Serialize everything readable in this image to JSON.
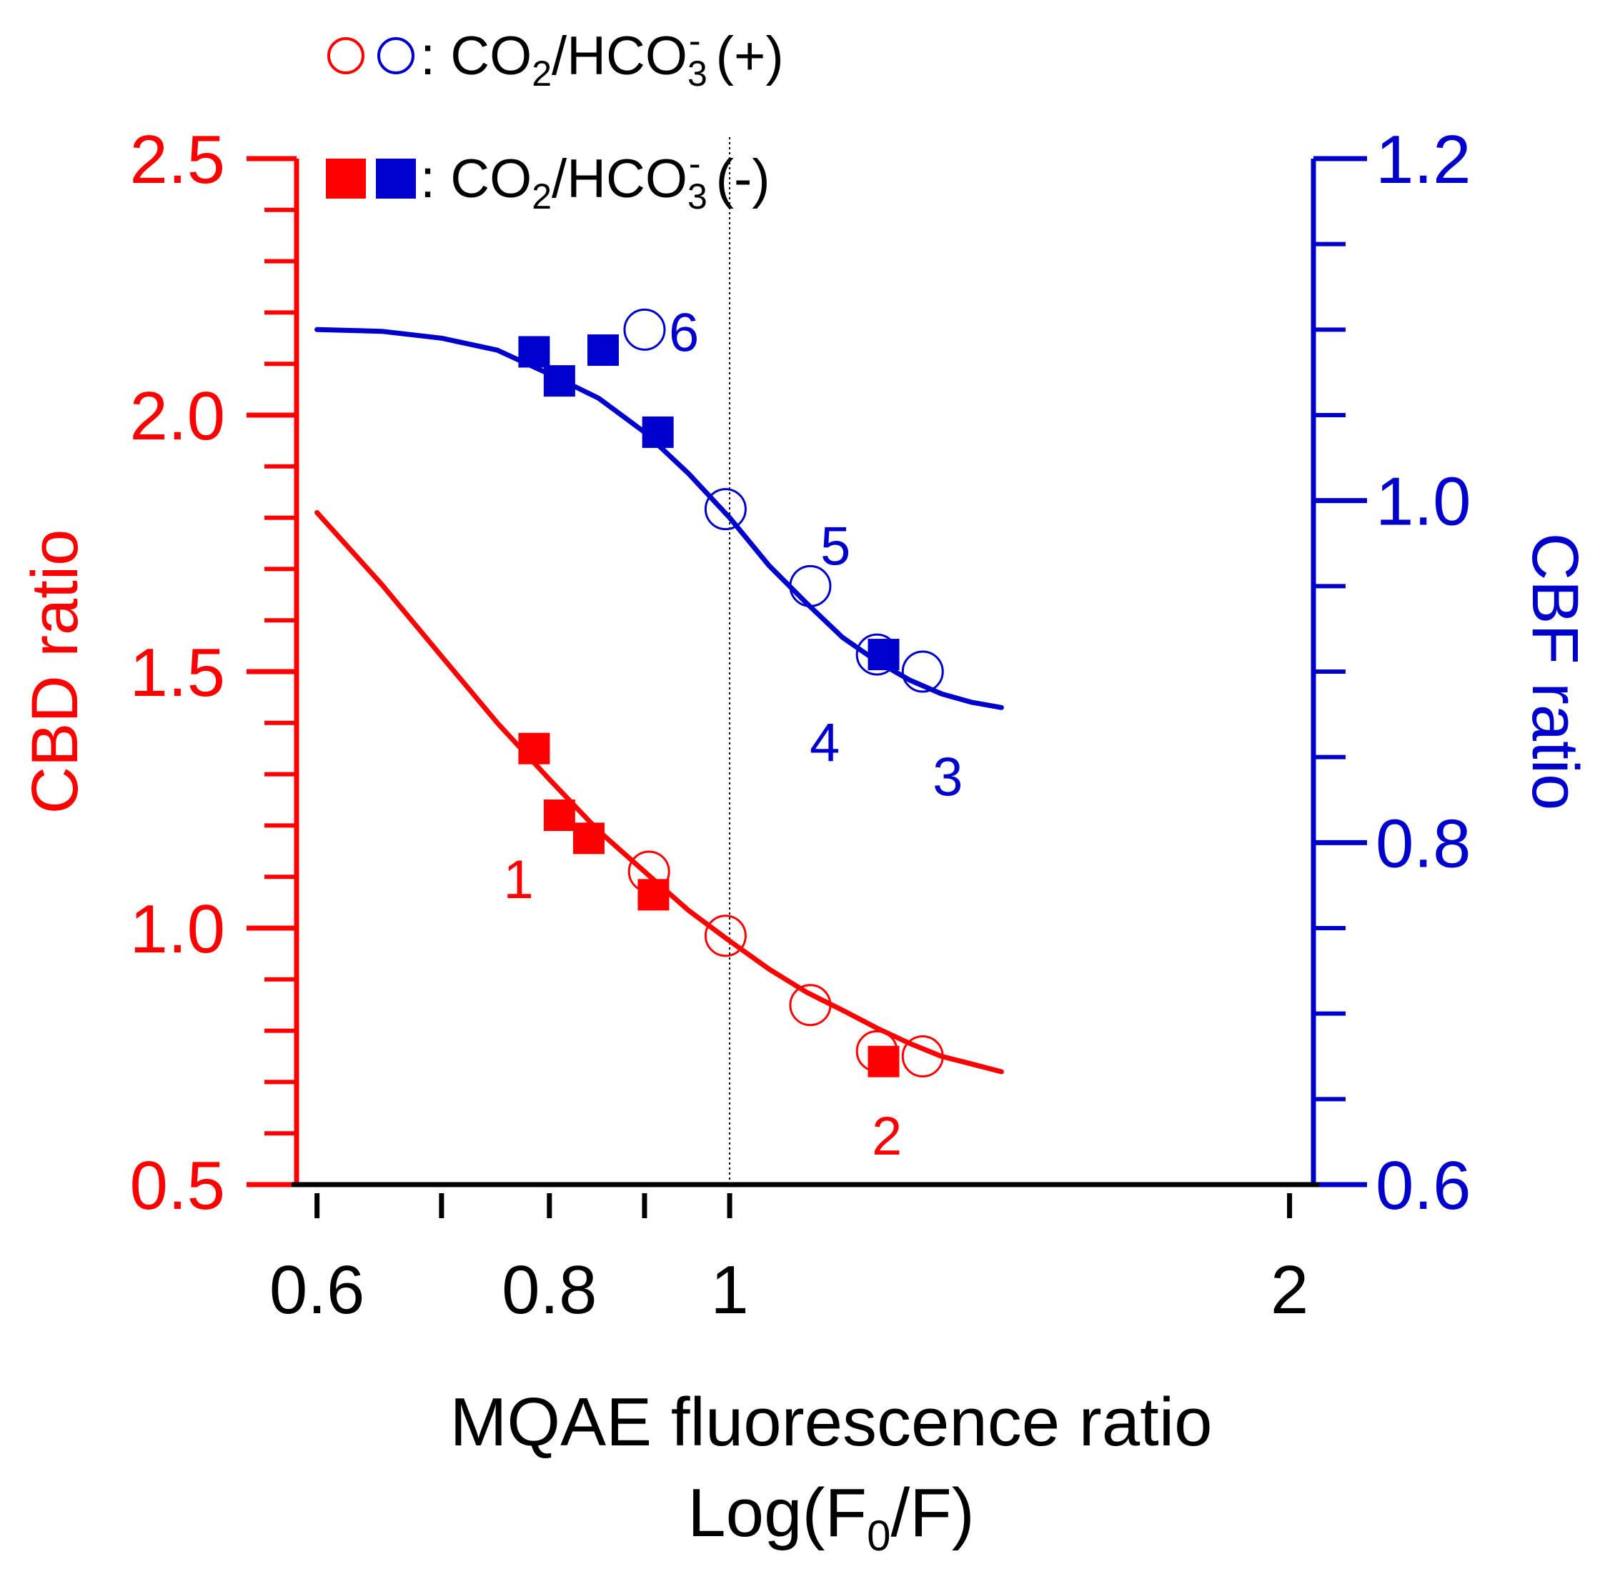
{
  "chart_data": {
    "type": "scatter",
    "title": "",
    "x_scale": "log",
    "xlabel": "MQAE fluorescence ratio",
    "xlabel_line2": {
      "prefix": "Log(F",
      "sub": "0",
      "suffix": "/F)"
    },
    "x_ticks": [
      0.6,
      0.7,
      0.8,
      0.9,
      1,
      2
    ],
    "x_tick_labels": [
      {
        "value": 0.6,
        "label": "0.6"
      },
      {
        "value": 0.8,
        "label": "0.8"
      },
      {
        "value": 1,
        "label": "1"
      },
      {
        "value": 2,
        "label": "2"
      }
    ],
    "xlim": [
      0.585,
      2.06
    ],
    "reference_line_x": 1.0,
    "y_left": {
      "label": "CBD ratio",
      "color": "#ff0000",
      "ylim": [
        0.5,
        2.5
      ],
      "major_ticks": [
        0.5,
        1.0,
        1.5,
        2.0,
        2.5
      ],
      "tick_labels": [
        "0.5",
        "1.0",
        "1.5",
        "2.0",
        "2.5"
      ],
      "minor_ticks": [
        0.6,
        0.7,
        0.8,
        0.9,
        1.1,
        1.2,
        1.3,
        1.4,
        1.6,
        1.7,
        1.8,
        1.9,
        2.1,
        2.2,
        2.3,
        2.4
      ]
    },
    "y_right": {
      "label": "CBF ratio",
      "color": "#0000cc",
      "ylim": [
        0.6,
        1.2
      ],
      "major_ticks": [
        0.6,
        0.8,
        1.0,
        1.2
      ],
      "tick_labels": [
        "0.6",
        "0.8",
        "1.0",
        "1.2"
      ],
      "minor_ticks": [
        0.65,
        0.7,
        0.75,
        0.85,
        0.9,
        0.95,
        1.05,
        1.1,
        1.15
      ]
    },
    "legend": {
      "position": "top-left",
      "entries": [
        {
          "marker": "open-circle",
          "colors": [
            "#ff0000",
            "#0000cc"
          ],
          "sep": ": ",
          "prefix": "CO",
          "sub1": "2",
          "mid": "/HCO",
          "sub2": "3",
          "sup": "-",
          "suffix": " (+)"
        },
        {
          "marker": "filled-square",
          "colors": [
            "#ff0000",
            "#0000cc"
          ],
          "sep": ": ",
          "prefix": "CO",
          "sub1": "2",
          "mid": "/HCO",
          "sub2": "3",
          "sup": "-",
          "suffix": " (-)"
        }
      ]
    },
    "series": [
      {
        "name": "CBD ratio, CO2/HCO3- (+)",
        "axis": "left",
        "marker": "open-circle",
        "color": "#ff0000",
        "points": [
          [
            0.905,
            1.11
          ],
          [
            0.995,
            0.985
          ],
          [
            1.105,
            0.85
          ],
          [
            1.2,
            0.76
          ],
          [
            1.27,
            0.75
          ]
        ]
      },
      {
        "name": "CBD ratio, CO2/HCO3- (-)",
        "axis": "left",
        "marker": "filled-square",
        "color": "#ff0000",
        "points": [
          [
            0.785,
            1.35
          ],
          [
            0.81,
            1.22
          ],
          [
            0.84,
            1.175
          ],
          [
            0.91,
            1.065
          ],
          [
            1.21,
            0.74
          ]
        ]
      },
      {
        "name": "CBF ratio, CO2/HCO3- (+)",
        "axis": "right",
        "marker": "open-circle",
        "color": "#0000cc",
        "points": [
          [
            0.9,
            1.1
          ],
          [
            0.995,
            0.995
          ],
          [
            1.105,
            0.95
          ],
          [
            1.2,
            0.91
          ],
          [
            1.27,
            0.9
          ]
        ]
      },
      {
        "name": "CBF ratio, CO2/HCO3- (-)",
        "axis": "right",
        "marker": "filled-square",
        "color": "#0000cc",
        "points": [
          [
            0.785,
            1.087
          ],
          [
            0.81,
            1.07
          ],
          [
            0.855,
            1.088
          ],
          [
            0.915,
            1.04
          ],
          [
            1.21,
            0.91
          ]
        ]
      }
    ],
    "fits": [
      {
        "name": "CBD fit",
        "axis": "left",
        "color": "#ff0000",
        "points": [
          [
            0.6,
            1.81
          ],
          [
            0.65,
            1.67
          ],
          [
            0.7,
            1.53
          ],
          [
            0.75,
            1.4
          ],
          [
            0.8,
            1.29
          ],
          [
            0.85,
            1.19
          ],
          [
            0.9,
            1.11
          ],
          [
            0.95,
            1.035
          ],
          [
            1.0,
            0.975
          ],
          [
            1.05,
            0.92
          ],
          [
            1.1,
            0.875
          ],
          [
            1.15,
            0.84
          ],
          [
            1.2,
            0.805
          ],
          [
            1.25,
            0.775
          ],
          [
            1.3,
            0.75
          ],
          [
            1.35,
            0.735
          ],
          [
            1.4,
            0.72
          ]
        ]
      },
      {
        "name": "CBF fit",
        "axis": "right",
        "color": "#0000cc",
        "points": [
          [
            0.6,
            1.1
          ],
          [
            0.65,
            1.099
          ],
          [
            0.7,
            1.095
          ],
          [
            0.75,
            1.088
          ],
          [
            0.8,
            1.074
          ],
          [
            0.85,
            1.06
          ],
          [
            0.9,
            1.04
          ],
          [
            0.95,
            1.016
          ],
          [
            1.0,
            0.99
          ],
          [
            1.05,
            0.962
          ],
          [
            1.1,
            0.94
          ],
          [
            1.15,
            0.92
          ],
          [
            1.2,
            0.906
          ],
          [
            1.25,
            0.895
          ],
          [
            1.3,
            0.887
          ],
          [
            1.35,
            0.882
          ],
          [
            1.4,
            0.879
          ]
        ]
      }
    ],
    "annotations": [
      {
        "text": "1",
        "axis": "left",
        "x": 0.77,
        "y": 1.1,
        "color": "#ff0000"
      },
      {
        "text": "2",
        "axis": "left",
        "x": 1.215,
        "y": 0.6,
        "color": "#ff0000"
      },
      {
        "text": "3",
        "axis": "right",
        "x": 1.31,
        "y": 0.84,
        "color": "#0000cc"
      },
      {
        "text": "4",
        "axis": "right",
        "x": 1.125,
        "y": 0.86,
        "color": "#0000cc"
      },
      {
        "text": "5",
        "axis": "right",
        "x": 1.14,
        "y": 0.975,
        "color": "#0000cc"
      },
      {
        "text": "6",
        "axis": "right",
        "x": 0.945,
        "y": 1.1,
        "color": "#0000cc"
      }
    ]
  }
}
